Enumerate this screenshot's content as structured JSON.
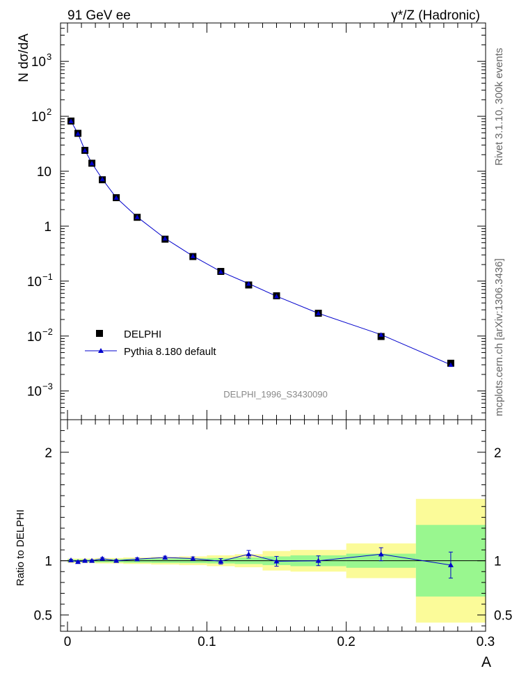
{
  "header": {
    "left": "91 GeV ee",
    "right": "γ*/Z (Hadronic)"
  },
  "side": {
    "top": "Rivet 3.1.10, 300k events",
    "bottom": "mcplots.cern.ch [arXiv:1306.3436]"
  },
  "analysis_label": "DELPHI_1996_S3430090",
  "colors": {
    "data_marker": "#000000",
    "mc_line": "#0000cc",
    "band_inner": "#99f78f",
    "band_outer": "#fbfb99"
  },
  "chart_data": [
    {
      "type": "scatter",
      "title": "",
      "xlabel": "A",
      "ylabel": "N dσ/dA",
      "yscale": "log",
      "ylim": [
        0.0003,
        5000
      ],
      "xlim": [
        -0.005,
        0.3
      ],
      "y_ticks": [
        {
          "v": 0.001,
          "base": "10",
          "exp": "−3"
        },
        {
          "v": 0.01,
          "base": "10",
          "exp": "−2"
        },
        {
          "v": 0.1,
          "base": "10",
          "exp": "−1"
        },
        {
          "v": 1,
          "base": "1",
          "exp": ""
        },
        {
          "v": 10,
          "base": "10",
          "exp": ""
        },
        {
          "v": 100,
          "base": "10",
          "exp": "2"
        },
        {
          "v": 1000,
          "base": "10",
          "exp": "3"
        }
      ],
      "legend": [
        "DELPHI",
        "Pythia 8.180 default"
      ],
      "legend_position": "lower-left",
      "series": [
        {
          "name": "DELPHI",
          "x": [
            0.0025,
            0.0075,
            0.0125,
            0.0175,
            0.025,
            0.035,
            0.05,
            0.07,
            0.09,
            0.11,
            0.13,
            0.15,
            0.18,
            0.225,
            0.275
          ],
          "values": [
            82,
            49,
            24,
            14,
            7.0,
            3.3,
            1.45,
            0.58,
            0.28,
            0.15,
            0.085,
            0.054,
            0.026,
            0.0098,
            0.0032
          ]
        },
        {
          "name": "Pythia 8.180 default",
          "x": [
            0.0025,
            0.0075,
            0.0125,
            0.0175,
            0.025,
            0.035,
            0.05,
            0.07,
            0.09,
            0.11,
            0.13,
            0.15,
            0.18,
            0.225,
            0.275
          ],
          "values": [
            82,
            48.5,
            24.1,
            14,
            7.2,
            3.3,
            1.47,
            0.6,
            0.286,
            0.149,
            0.09,
            0.053,
            0.026,
            0.0106,
            0.003
          ]
        }
      ]
    },
    {
      "type": "line",
      "title": "",
      "xlabel": "A",
      "ylabel": "Ratio to DELPHI",
      "ylim": [
        0.35,
        2.3
      ],
      "xlim": [
        -0.005,
        0.3
      ],
      "x_ticks": [
        "0",
        "0.1",
        "0.2",
        "0.3"
      ],
      "x_tick_values": [
        0,
        0.1,
        0.2,
        0.3
      ],
      "y_ticks": [
        "0.5",
        "1",
        "2"
      ],
      "y_tick_values": [
        0.5,
        1,
        2
      ],
      "bins": [
        {
          "lo": 0.0,
          "hi": 0.005,
          "inner": 0.012,
          "outer": 0.02
        },
        {
          "lo": 0.005,
          "hi": 0.01,
          "inner": 0.012,
          "outer": 0.02
        },
        {
          "lo": 0.01,
          "hi": 0.015,
          "inner": 0.012,
          "outer": 0.02
        },
        {
          "lo": 0.015,
          "hi": 0.02,
          "inner": 0.012,
          "outer": 0.02
        },
        {
          "lo": 0.02,
          "hi": 0.03,
          "inner": 0.015,
          "outer": 0.025
        },
        {
          "lo": 0.03,
          "hi": 0.04,
          "inner": 0.015,
          "outer": 0.025
        },
        {
          "lo": 0.04,
          "hi": 0.06,
          "inner": 0.018,
          "outer": 0.03
        },
        {
          "lo": 0.06,
          "hi": 0.08,
          "inner": 0.02,
          "outer": 0.035
        },
        {
          "lo": 0.08,
          "hi": 0.1,
          "inner": 0.022,
          "outer": 0.04
        },
        {
          "lo": 0.1,
          "hi": 0.12,
          "inner": 0.025,
          "outer": 0.05
        },
        {
          "lo": 0.12,
          "hi": 0.14,
          "inner": 0.03,
          "outer": 0.06
        },
        {
          "lo": 0.14,
          "hi": 0.16,
          "inner": 0.04,
          "outer": 0.09
        },
        {
          "lo": 0.16,
          "hi": 0.2,
          "inner": 0.05,
          "outer": 0.1
        },
        {
          "lo": 0.2,
          "hi": 0.25,
          "inner": 0.065,
          "outer": 0.16
        },
        {
          "lo": 0.25,
          "hi": 0.3,
          "inner": 0.33,
          "outer": 0.57
        }
      ],
      "series": [
        {
          "name": "Pythia 8.180 default",
          "x": [
            0.0025,
            0.0075,
            0.0125,
            0.0175,
            0.025,
            0.035,
            0.05,
            0.07,
            0.09,
            0.11,
            0.13,
            0.15,
            0.18,
            0.225,
            0.275
          ],
          "values": [
            1.005,
            0.99,
            1.0,
            1.0,
            1.02,
            1.0,
            1.015,
            1.03,
            1.02,
            0.995,
            1.06,
            0.995,
            1.0,
            1.06,
            0.96
          ],
          "err": [
            0.008,
            0.008,
            0.008,
            0.008,
            0.01,
            0.01,
            0.012,
            0.012,
            0.015,
            0.025,
            0.035,
            0.045,
            0.045,
            0.06,
            0.12
          ]
        }
      ]
    }
  ]
}
